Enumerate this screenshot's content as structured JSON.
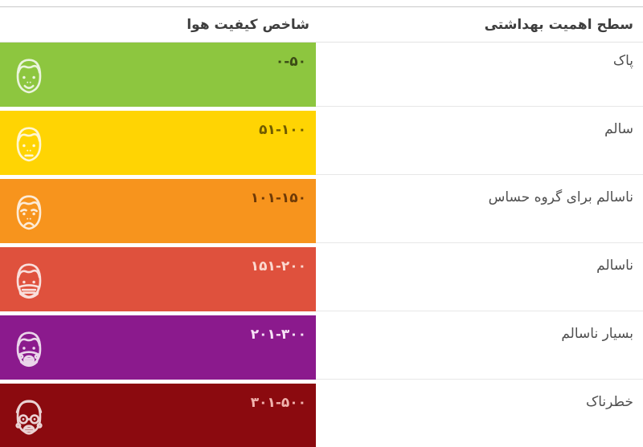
{
  "chart_data": {
    "type": "table",
    "title": "",
    "direction": "rtl",
    "grid": "row-separators",
    "columns": [
      {
        "key": "aqi_range",
        "label": "شاخص کیفیت هوا"
      },
      {
        "key": "health_level",
        "label": "سطح اهمیت بهداشتی"
      }
    ],
    "rows": [
      {
        "range": "۰-۵۰",
        "level": "پاک",
        "color": "#8dc63f",
        "number_color": "#3b4b15",
        "icon": "smiling-face"
      },
      {
        "range": "۵۱-۱۰۰",
        "level": "سالم",
        "color": "#ffd403",
        "number_color": "#6f5a00",
        "icon": "neutral-face"
      },
      {
        "range": "۱۰۱-۱۵۰",
        "level": "ناسالم برای گروه حساس",
        "color": "#f7941d",
        "number_color": "#6e3a07",
        "icon": "sad-face"
      },
      {
        "range": "۱۵۱-۲۰۰",
        "level": "ناسالم",
        "color": "#df513d",
        "number_color": "#fbd9d0",
        "icon": "masked-face"
      },
      {
        "range": "۲۰۱-۳۰۰",
        "level": "بسیار ناسالم",
        "color": "#8b1a8d",
        "number_color": "#f7e3f7",
        "icon": "respirator-face"
      },
      {
        "range": "۳۰۱-۵۰۰",
        "level": "خطرناک",
        "color": "#8b0a0f",
        "number_color": "#f0b3ae",
        "icon": "gas-mask-face"
      }
    ]
  }
}
